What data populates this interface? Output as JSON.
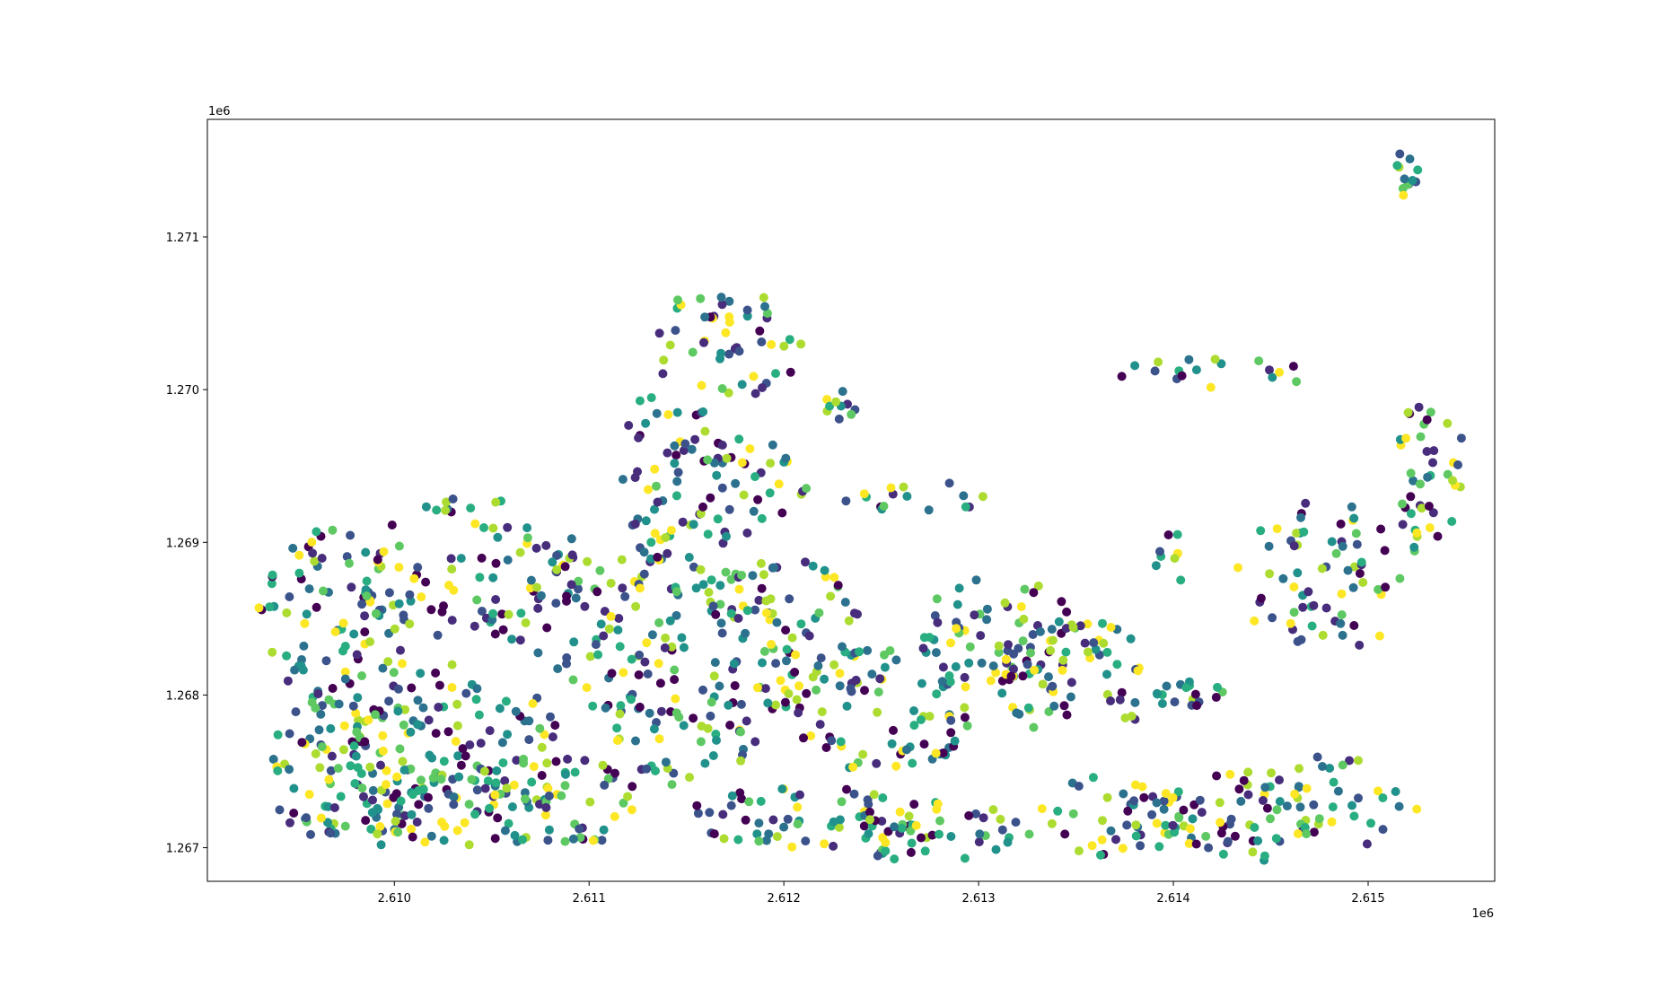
{
  "chart_data": {
    "type": "scatter",
    "title": "",
    "xlabel": "",
    "ylabel": "",
    "x_offset_label": "1e6",
    "y_offset_label": "1e6",
    "xlim": [
      2.60904,
      2.61565
    ],
    "ylim": [
      1.26678,
      1.27177
    ],
    "x_ticks": [
      2.61,
      2.611,
      2.612,
      2.613,
      2.614,
      2.615
    ],
    "x_tick_labels": [
      "2.610",
      "2.611",
      "2.612",
      "2.613",
      "2.614",
      "2.615"
    ],
    "y_ticks": [
      1.267,
      1.268,
      1.269,
      1.27,
      1.271
    ],
    "y_tick_labels": [
      "1.267",
      "1.268",
      "1.269",
      "1.270",
      "1.271"
    ],
    "grid": false,
    "legend": "none",
    "colormap": "viridis",
    "palette": [
      "#440154",
      "#472d7b",
      "#3b528b",
      "#2c728e",
      "#21918c",
      "#28ae80",
      "#5ec962",
      "#addc30",
      "#fde725"
    ],
    "clusters": [
      {
        "cx": 2.6098,
        "cy": 1.2675,
        "rx": 0.0005,
        "ry": 0.0005,
        "n": 120
      },
      {
        "cx": 2.6097,
        "cy": 1.2685,
        "rx": 0.0004,
        "ry": 0.0006,
        "n": 90
      },
      {
        "cx": 2.6103,
        "cy": 1.2676,
        "rx": 0.0006,
        "ry": 0.0006,
        "n": 120
      },
      {
        "cx": 2.6104,
        "cy": 1.2688,
        "rx": 0.0006,
        "ry": 0.0005,
        "n": 90
      },
      {
        "cx": 2.6108,
        "cy": 1.2673,
        "rx": 0.0005,
        "ry": 0.0003,
        "n": 70
      },
      {
        "cx": 2.6111,
        "cy": 1.2685,
        "rx": 0.0004,
        "ry": 0.0006,
        "n": 70
      },
      {
        "cx": 2.6115,
        "cy": 1.2679,
        "rx": 0.0004,
        "ry": 0.0005,
        "n": 70
      },
      {
        "cx": 2.6117,
        "cy": 1.2692,
        "rx": 0.0004,
        "ry": 0.0007,
        "n": 80
      },
      {
        "cx": 2.612,
        "cy": 1.2684,
        "rx": 0.0004,
        "ry": 0.0005,
        "n": 70
      },
      {
        "cx": 2.6125,
        "cy": 1.2679,
        "rx": 0.0005,
        "ry": 0.0004,
        "n": 80
      },
      {
        "cx": 2.6121,
        "cy": 1.2672,
        "rx": 0.0006,
        "ry": 0.0002,
        "n": 55
      },
      {
        "cx": 2.6128,
        "cy": 1.2671,
        "rx": 0.0005,
        "ry": 0.0002,
        "n": 50
      },
      {
        "cx": 2.6131,
        "cy": 1.2684,
        "rx": 0.0004,
        "ry": 0.0004,
        "n": 70
      },
      {
        "cx": 2.6135,
        "cy": 1.2681,
        "rx": 0.0004,
        "ry": 0.0004,
        "n": 60
      },
      {
        "cx": 2.6137,
        "cy": 1.2672,
        "rx": 0.0004,
        "ry": 0.0003,
        "n": 45
      },
      {
        "cx": 2.6143,
        "cy": 1.2672,
        "rx": 0.0005,
        "ry": 0.0003,
        "n": 55
      },
      {
        "cx": 2.6148,
        "cy": 1.2673,
        "rx": 0.0005,
        "ry": 0.0003,
        "n": 40
      },
      {
        "cx": 2.6148,
        "cy": 1.2688,
        "rx": 0.0005,
        "ry": 0.0005,
        "n": 70
      },
      {
        "cx": 2.6153,
        "cy": 1.2695,
        "rx": 0.0002,
        "ry": 0.0005,
        "n": 40
      },
      {
        "cx": 2.6117,
        "cy": 1.2703,
        "rx": 0.0004,
        "ry": 0.0004,
        "n": 50
      },
      {
        "cx": 2.6114,
        "cy": 1.2695,
        "rx": 0.0003,
        "ry": 0.0005,
        "n": 40
      },
      {
        "cx": 2.6126,
        "cy": 1.2693,
        "rx": 0.0006,
        "ry": 0.0001,
        "n": 18
      },
      {
        "cx": 2.614,
        "cy": 1.268,
        "rx": 0.0003,
        "ry": 0.0001,
        "n": 20
      },
      {
        "cx": 2.6142,
        "cy": 1.2701,
        "rx": 0.0006,
        "ry": 0.0001,
        "n": 18
      },
      {
        "cx": 2.6152,
        "cy": 1.2714,
        "rx": 6e-05,
        "ry": 0.0002,
        "n": 12
      },
      {
        "cx": 2.6123,
        "cy": 1.2699,
        "rx": 0.0001,
        "ry": 0.0001,
        "n": 10
      },
      {
        "cx": 2.614,
        "cy": 1.2689,
        "rx": 0.0001,
        "ry": 0.0002,
        "n": 8
      }
    ]
  }
}
